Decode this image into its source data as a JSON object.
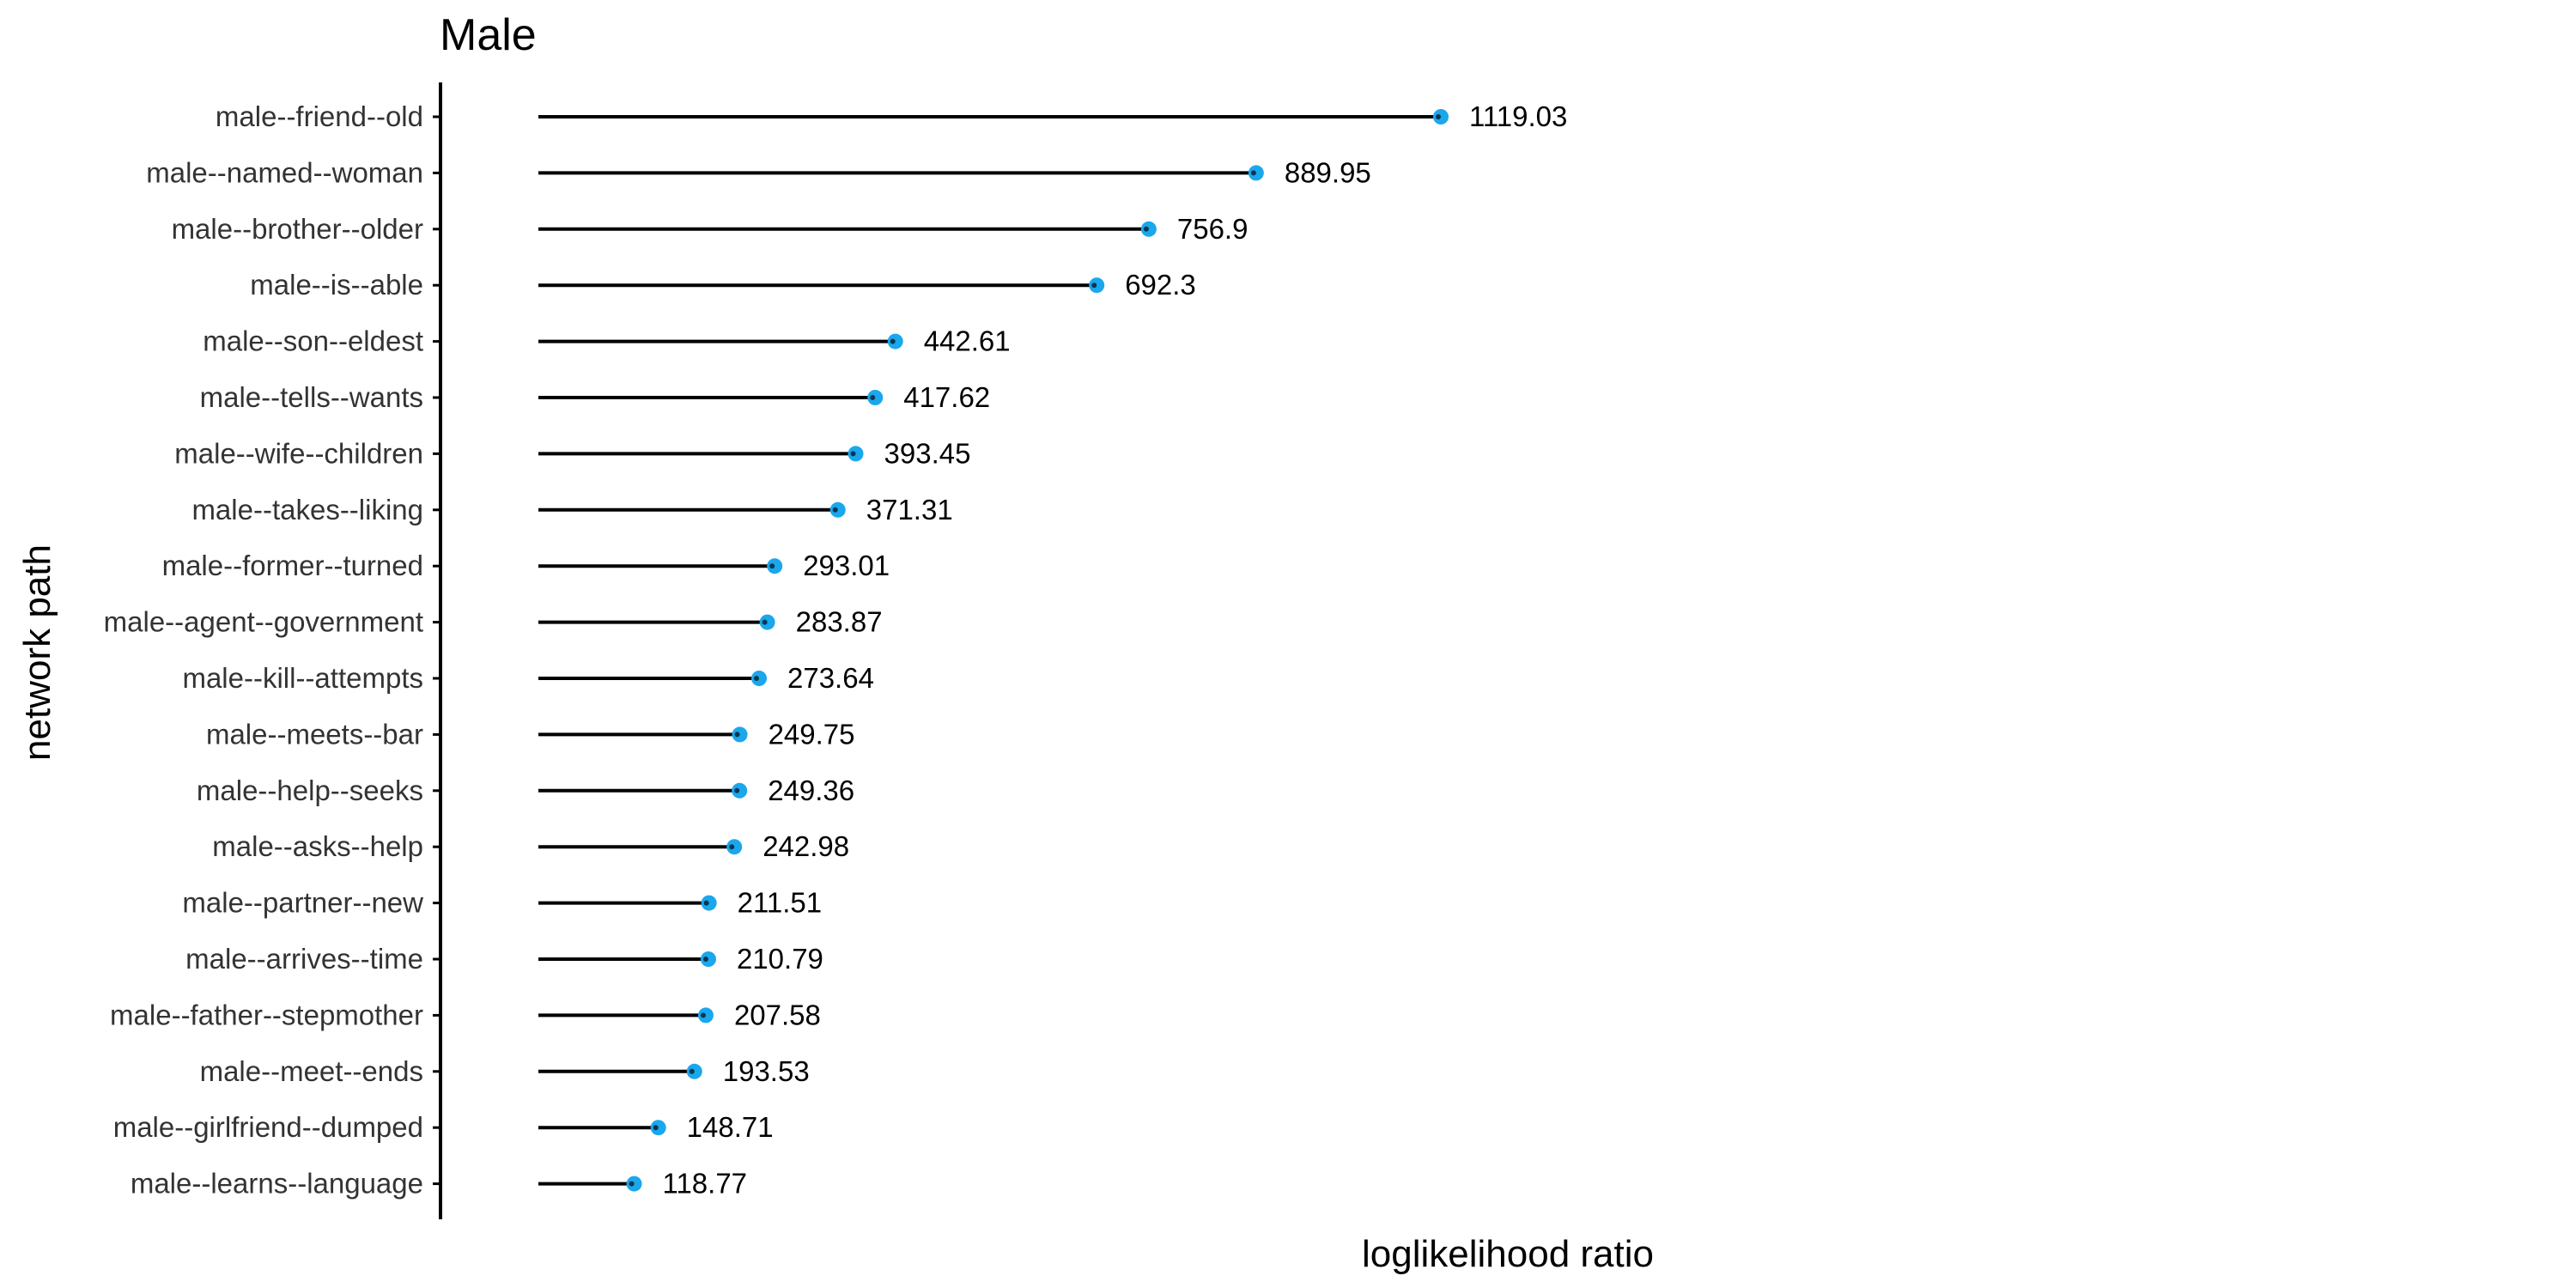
{
  "chart_data": {
    "type": "lollipop",
    "title": "Male",
    "xlabel": "loglikelihood ratio",
    "ylabel": "network path",
    "grid": false,
    "legend": "none",
    "point_color": "#1aa7ec",
    "line_color": "#000000",
    "categories": [
      "male--friend--old",
      "male--named--woman",
      "male--brother--older",
      "male--is--able",
      "male--son--eldest",
      "male--tells--wants",
      "male--wife--children",
      "male--takes--liking",
      "male--former--turned",
      "male--agent--government",
      "male--kill--attempts",
      "male--meets--bar",
      "male--help--seeks",
      "male--asks--help",
      "male--partner--new",
      "male--arrives--time",
      "male--father--stepmother",
      "male--meet--ends",
      "male--girlfriend--dumped",
      "male--learns--language"
    ],
    "values": [
      1119.03,
      889.95,
      756.9,
      692.3,
      442.61,
      417.62,
      393.45,
      371.31,
      293.01,
      283.87,
      273.64,
      249.75,
      249.36,
      242.98,
      211.51,
      210.79,
      207.58,
      193.53,
      148.71,
      118.77
    ],
    "value_labels": [
      "1119.03",
      "889.95",
      "756.9",
      "692.3",
      "442.61",
      "417.62",
      "393.45",
      "371.31",
      "293.01",
      "283.87",
      "273.64",
      "249.75",
      "249.36",
      "242.98",
      "211.51",
      "210.79",
      "207.58",
      "193.53",
      "148.71",
      "118.77"
    ]
  }
}
